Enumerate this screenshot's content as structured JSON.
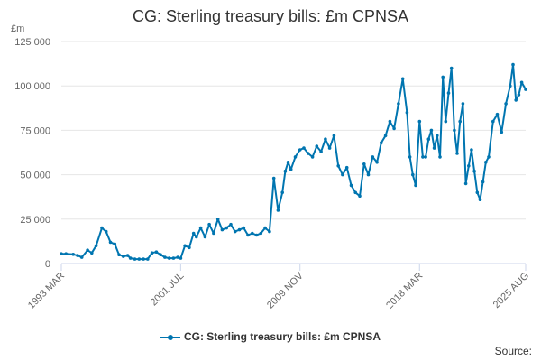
{
  "title": "CG: Sterling treasury bills: £m CPNSA",
  "legend_label": "CG: Sterling treasury bills: £m CPNSA",
  "source_label": "Source:",
  "colors": {
    "series": "#0075b0",
    "grid": "#e6e6e6",
    "axis": "#ccd6eb"
  },
  "chart_data": {
    "type": "line",
    "title": "CG: Sterling treasury bills: £m CPNSA",
    "xlabel": "",
    "ylabel": "£m",
    "ylim": [
      0,
      125000
    ],
    "y_ticks": [
      0,
      25000,
      50000,
      75000,
      100000,
      125000
    ],
    "y_tick_labels": [
      "0",
      "25 000",
      "50 000",
      "75 000",
      "100 000",
      "125 000"
    ],
    "x_tick_labels": [
      {
        "label": "1993 MAR",
        "t": 1993.17
      },
      {
        "label": "2001 JUL",
        "t": 2001.5
      },
      {
        "label": "2009 NOV",
        "t": 2009.83
      },
      {
        "label": "2018 MAR",
        "t": 2018.17
      },
      {
        "label": "2025 AUG",
        "t": 2025.58
      }
    ],
    "xlim": [
      1993.17,
      2025.58
    ],
    "grid": true,
    "legend": "bottom",
    "series": [
      {
        "name": "CG: Sterling treasury bills: £m CPNSA",
        "x": [
          1993.17,
          1993.5,
          1994.0,
          1994.3,
          1994.6,
          1995.0,
          1995.3,
          1995.6,
          1996.0,
          1996.3,
          1996.6,
          1996.9,
          1997.2,
          1997.5,
          1997.8,
          1998.0,
          1998.3,
          1998.6,
          1998.9,
          1999.2,
          1999.5,
          1999.8,
          2000.1,
          2000.4,
          2000.7,
          2001.0,
          2001.3,
          2001.5,
          2001.8,
          2002.1,
          2002.4,
          2002.6,
          2002.9,
          2003.2,
          2003.5,
          2003.8,
          2004.1,
          2004.4,
          2004.7,
          2005.0,
          2005.3,
          2005.6,
          2005.9,
          2006.2,
          2006.5,
          2006.8,
          2007.1,
          2007.4,
          2007.7,
          2008.0,
          2008.3,
          2008.6,
          2008.8,
          2009.0,
          2009.2,
          2009.5,
          2009.83,
          2010.1,
          2010.4,
          2010.7,
          2011.0,
          2011.3,
          2011.6,
          2011.9,
          2012.2,
          2012.5,
          2012.8,
          2013.1,
          2013.4,
          2013.7,
          2014.0,
          2014.3,
          2014.6,
          2014.9,
          2015.2,
          2015.5,
          2015.8,
          2016.1,
          2016.4,
          2016.7,
          2017.0,
          2017.3,
          2017.5,
          2017.7,
          2017.9,
          2018.17,
          2018.4,
          2018.6,
          2018.8,
          2019.0,
          2019.2,
          2019.4,
          2019.6,
          2019.8,
          2020.0,
          2020.2,
          2020.4,
          2020.6,
          2020.8,
          2021.0,
          2021.2,
          2021.4,
          2021.6,
          2021.8,
          2022.0,
          2022.2,
          2022.4,
          2022.6,
          2022.8,
          2023.0,
          2023.3,
          2023.6,
          2023.9,
          2024.2,
          2024.5,
          2024.7,
          2024.9,
          2025.1,
          2025.3,
          2025.58
        ],
        "values": [
          5500,
          5500,
          5200,
          4500,
          3500,
          7500,
          6000,
          10000,
          20000,
          18000,
          12000,
          11000,
          5000,
          4000,
          4500,
          3000,
          2500,
          2500,
          2500,
          2500,
          6000,
          6500,
          5000,
          3500,
          3000,
          3000,
          3500,
          3000,
          10000,
          9000,
          17000,
          15000,
          20000,
          15000,
          22000,
          17000,
          25000,
          19000,
          20000,
          22000,
          18000,
          19000,
          20000,
          16000,
          17000,
          16000,
          17000,
          20000,
          18000,
          48000,
          30000,
          40000,
          52000,
          57000,
          53000,
          60000,
          64000,
          65000,
          62000,
          60000,
          66000,
          63000,
          70000,
          65000,
          72000,
          55000,
          50000,
          54000,
          44000,
          40000,
          38000,
          56000,
          50000,
          60000,
          57000,
          68000,
          72000,
          80000,
          76000,
          90000,
          104000,
          85000,
          60000,
          50000,
          44000,
          80000,
          60000,
          60000,
          70000,
          75000,
          65000,
          72000,
          60000,
          105000,
          80000,
          96000,
          110000,
          75000,
          62000,
          80000,
          90000,
          45000,
          55000,
          64000,
          52000,
          40000,
          36000,
          46000,
          57000,
          60000,
          80000,
          84000,
          74000,
          90000,
          100000,
          112000,
          92000,
          95000,
          102000,
          98000
        ]
      }
    ]
  }
}
